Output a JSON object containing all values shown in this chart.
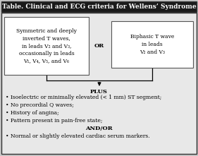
{
  "title": "Table. Clinical and ECG criteria for Wellens’ Syndrome",
  "title_bg": "#1a1a1a",
  "title_color": "white",
  "title_fontsize": 6.5,
  "outer_bg": "#c8c8c8",
  "inner_bg": "#e8e8e8",
  "box_bg": "white",
  "left_box_text": "Symmetric and deeply\ninverted T waves,\nin leads V₂ and V₃,\noccasionally in leads\nV₁, V₄, V₅, and V₆",
  "right_box_text": "Biphasic T wave\nin leads\nV₂ and V₃",
  "or_text": "OR",
  "plus_text": "PLUS",
  "andor_text": "AND/OR",
  "bullet_lines": [
    "• Isoelectric or minimally elevated (< 1 mm) ST segment;",
    "• No precordial Q waves;",
    "• History of angina;",
    "• Pattern present in pain-free state;"
  ],
  "last_bullet": "• Normal or slightly elevated cardiac serum markers.",
  "font_size": 5.5,
  "bold_font_size": 6.0
}
